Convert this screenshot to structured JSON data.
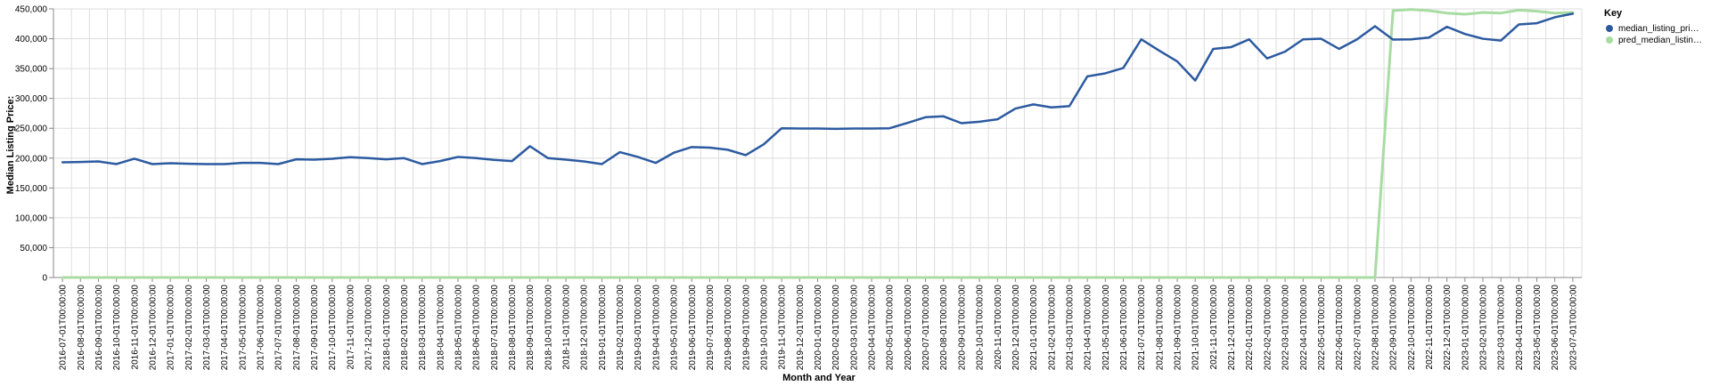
{
  "chart_data": {
    "type": "line",
    "xlabel": "Month and Year",
    "ylabel": "Median Listing Price:",
    "ylim": [
      0,
      450000
    ],
    "y_ticks": [
      "0",
      "50,000",
      "100,000",
      "150,000",
      "200,000",
      "250,000",
      "300,000",
      "350,000",
      "400,000",
      "450,000"
    ],
    "grid": true,
    "legend": {
      "title": "Key",
      "placement": "top-right",
      "entries": [
        "median_listing_pri…",
        "pred_median_listin…"
      ]
    },
    "x": [
      "2016-07-01T00:00:00",
      "2016-08-01T00:00:00",
      "2016-09-01T00:00:00",
      "2016-10-01T00:00:00",
      "2016-11-01T00:00:00",
      "2016-12-01T00:00:00",
      "2017-01-01T00:00:00",
      "2017-02-01T00:00:00",
      "2017-03-01T00:00:00",
      "2017-04-01T00:00:00",
      "2017-05-01T00:00:00",
      "2017-06-01T00:00:00",
      "2017-07-01T00:00:00",
      "2017-08-01T00:00:00",
      "2017-09-01T00:00:00",
      "2017-10-01T00:00:00",
      "2017-11-01T00:00:00",
      "2017-12-01T00:00:00",
      "2018-01-01T00:00:00",
      "2018-02-01T00:00:00",
      "2018-03-01T00:00:00",
      "2018-04-01T00:00:00",
      "2018-05-01T00:00:00",
      "2018-06-01T00:00:00",
      "2018-07-01T00:00:00",
      "2018-08-01T00:00:00",
      "2018-09-01T00:00:00",
      "2018-10-01T00:00:00",
      "2018-11-01T00:00:00",
      "2018-12-01T00:00:00",
      "2019-01-01T00:00:00",
      "2019-02-01T00:00:00",
      "2019-03-01T00:00:00",
      "2019-04-01T00:00:00",
      "2019-05-01T00:00:00",
      "2019-06-01T00:00:00",
      "2019-07-01T00:00:00",
      "2019-08-01T00:00:00",
      "2019-09-01T00:00:00",
      "2019-10-01T00:00:00",
      "2019-11-01T00:00:00",
      "2019-12-01T00:00:00",
      "2020-01-01T00:00:00",
      "2020-02-01T00:00:00",
      "2020-03-01T00:00:00",
      "2020-04-01T00:00:00",
      "2020-05-01T00:00:00",
      "2020-06-01T00:00:00",
      "2020-07-01T00:00:00",
      "2020-08-01T00:00:00",
      "2020-09-01T00:00:00",
      "2020-10-01T00:00:00",
      "2020-11-01T00:00:00",
      "2020-12-01T00:00:00",
      "2021-01-01T00:00:00",
      "2021-02-01T00:00:00",
      "2021-03-01T00:00:00",
      "2021-04-01T00:00:00",
      "2021-05-01T00:00:00",
      "2021-06-01T00:00:00",
      "2021-07-01T00:00:00",
      "2021-08-01T00:00:00",
      "2021-09-01T00:00:00",
      "2021-10-01T00:00:00",
      "2021-11-01T00:00:00",
      "2021-12-01T00:00:00",
      "2022-01-01T00:00:00",
      "2022-02-01T00:00:00",
      "2022-03-01T00:00:00",
      "2022-04-01T00:00:00",
      "2022-05-01T00:00:00",
      "2022-06-01T00:00:00",
      "2022-07-01T00:00:00",
      "2022-08-01T00:00:00",
      "2022-09-01T00:00:00",
      "2022-10-01T00:00:00",
      "2022-11-01T00:00:00",
      "2022-12-01T00:00:00",
      "2023-01-01T00:00:00",
      "2023-02-01T00:00:00",
      "2023-03-01T00:00:00",
      "2023-04-01T00:00:00",
      "2023-05-01T00:00:00",
      "2023-06-01T00:00:00",
      "2023-07-01T00:00:00"
    ],
    "series": [
      {
        "name": "median_listing_pri…",
        "color": "#2c5aa0",
        "values": [
          193000,
          193500,
          194500,
          190000,
          199000,
          190000,
          191500,
          190500,
          190000,
          190000,
          192000,
          192000,
          190000,
          198000,
          197500,
          199000,
          201500,
          200000,
          198000,
          200000,
          190000,
          195000,
          202000,
          200000,
          197000,
          195000,
          220000,
          200000,
          197500,
          194500,
          190000,
          210000,
          202000,
          192000,
          209000,
          218500,
          217500,
          214000,
          205000,
          223000,
          250000,
          249500,
          249500,
          249000,
          249500,
          249500,
          250000,
          259000,
          268500,
          270000,
          258500,
          261000,
          265000,
          283000,
          290000,
          285000,
          287000,
          337000,
          342000,
          351000,
          399000,
          380000,
          362000,
          330000,
          383000,
          386000,
          399000,
          367000,
          378500,
          399000,
          400000,
          383000,
          399000,
          421000,
          398500,
          399000,
          402000,
          420000,
          408000,
          400000,
          397000,
          424000,
          426000,
          436000,
          442000
        ]
      },
      {
        "name": "pred_median_listin…",
        "color": "#a8dca2",
        "values": [
          0,
          0,
          0,
          0,
          0,
          0,
          0,
          0,
          0,
          0,
          0,
          0,
          0,
          0,
          0,
          0,
          0,
          0,
          0,
          0,
          0,
          0,
          0,
          0,
          0,
          0,
          0,
          0,
          0,
          0,
          0,
          0,
          0,
          0,
          0,
          0,
          0,
          0,
          0,
          0,
          0,
          0,
          0,
          0,
          0,
          0,
          0,
          0,
          0,
          0,
          0,
          0,
          0,
          0,
          0,
          0,
          0,
          0,
          0,
          0,
          0,
          0,
          0,
          0,
          0,
          0,
          0,
          0,
          0,
          0,
          0,
          0,
          0,
          0,
          447000,
          449000,
          447000,
          443000,
          441000,
          444000,
          443000,
          448000,
          446000,
          443000,
          444000
        ]
      }
    ]
  }
}
